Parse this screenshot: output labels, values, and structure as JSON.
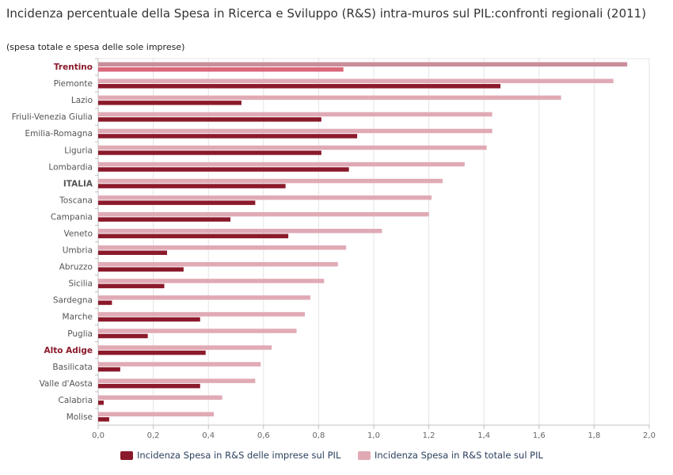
{
  "chart_data": {
    "type": "bar",
    "orientation": "horizontal",
    "title": "Incidenza percentuale della Spesa in Ricerca e Sviluppo (R&S) intra-muros sul PIL:confronti regionali (2011)",
    "subtitle": "(spesa totale e spesa delle sole imprese)",
    "categories": [
      "Trentino",
      "Piemonte",
      "Lazio",
      "Friuli-Venezia Giulia",
      "Emilia-Romagna",
      "Liguria",
      "Lombardia",
      "ITALIA",
      "Toscana",
      "Campania",
      "Veneto",
      "Umbria",
      "Abruzzo",
      "Sicilia",
      "Sardegna",
      "Marche",
      "Puglia",
      "Alto Adige",
      "Basilicata",
      "Valle d'Aosta",
      "Calabria",
      "Molise"
    ],
    "highlight_red": [
      "Trentino",
      "Alto Adige"
    ],
    "highlight_bold": [
      "ITALIA"
    ],
    "series": [
      {
        "name": "Incidenza Spesa in R&S totale sul PIL",
        "color": "#e0aab5",
        "highlight_color": "#c98d9a",
        "values": [
          1.92,
          1.87,
          1.68,
          1.43,
          1.43,
          1.41,
          1.33,
          1.25,
          1.21,
          1.2,
          1.03,
          0.9,
          0.87,
          0.82,
          0.77,
          0.75,
          0.72,
          0.63,
          0.59,
          0.57,
          0.45,
          0.42
        ]
      },
      {
        "name": "Incidenza Spesa in R&S delle imprese sul PIL",
        "color": "#8b1a2b",
        "highlight_color": "#d9687a",
        "values": [
          0.89,
          1.46,
          0.52,
          0.81,
          0.94,
          0.81,
          0.91,
          0.68,
          0.57,
          0.48,
          0.69,
          0.25,
          0.31,
          0.24,
          0.05,
          0.37,
          0.18,
          0.39,
          0.08,
          0.37,
          0.02,
          0.04
        ]
      }
    ],
    "xlim": [
      0,
      2.0
    ],
    "xticks": [
      "0,0",
      "0,2",
      "0,4",
      "0,6",
      "0,8",
      "1,0",
      "1,2",
      "1,4",
      "1,6",
      "1,8",
      "2,0"
    ],
    "grid": true,
    "legend_position": "bottom"
  },
  "legend": {
    "items": [
      {
        "label": "Incidenza Spesa in R&S delle imprese sul PIL",
        "color": "#8b1a2b"
      },
      {
        "label": "Incidenza Spesa in R&S totale sul PIL",
        "color": "#e0aab5"
      }
    ]
  }
}
